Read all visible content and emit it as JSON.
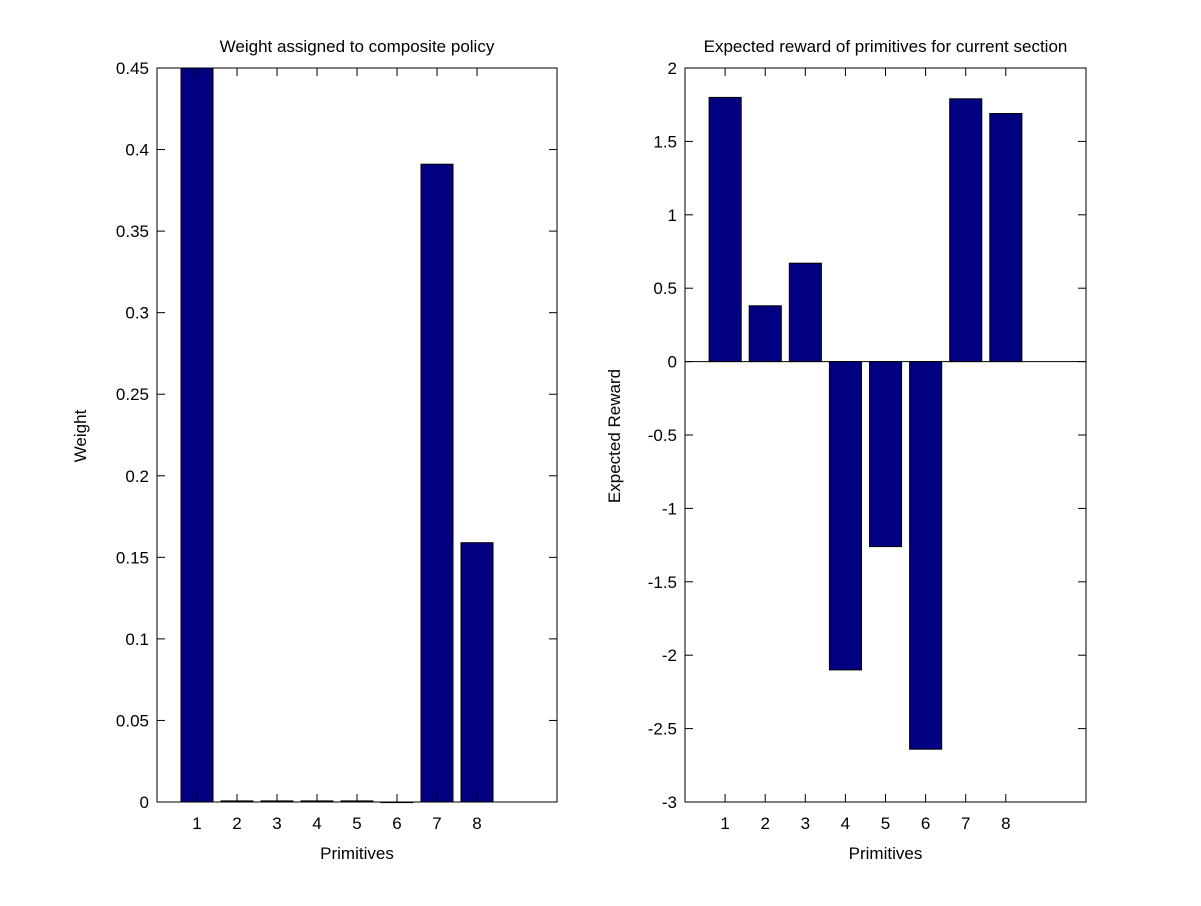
{
  "chart_data": [
    {
      "type": "bar",
      "title": "Weight assigned to composite policy",
      "xlabel": "Primitives",
      "ylabel": "Weight",
      "categories": [
        "1",
        "2",
        "3",
        "4",
        "5",
        "6",
        "7",
        "8"
      ],
      "values": [
        0.45,
        0.0007,
        0.0007,
        0.0007,
        0.0007,
        0,
        0.391,
        0.159
      ],
      "xlim": [
        0,
        10
      ],
      "ylim": [
        0,
        0.45
      ],
      "yticks": [
        "0",
        "0.05",
        "0.1",
        "0.15",
        "0.2",
        "0.25",
        "0.3",
        "0.35",
        "0.4",
        "0.45"
      ],
      "bar_color": "#000080",
      "grid": false
    },
    {
      "type": "bar",
      "title": "Expected reward of primitives for current section",
      "xlabel": "Primitives",
      "ylabel": "Expected Reward",
      "categories": [
        "1",
        "2",
        "3",
        "4",
        "5",
        "6",
        "7",
        "8"
      ],
      "values": [
        1.8,
        0.38,
        0.67,
        -2.1,
        -1.26,
        -2.64,
        1.79,
        1.69
      ],
      "xlim": [
        0,
        10
      ],
      "ylim": [
        -3,
        2
      ],
      "yticks": [
        "-3",
        "-2.5",
        "-2",
        "-1.5",
        "-1",
        "-0.5",
        "0",
        "0.5",
        "1",
        "1.5",
        "2"
      ],
      "bar_color": "#000080",
      "grid": false
    }
  ]
}
